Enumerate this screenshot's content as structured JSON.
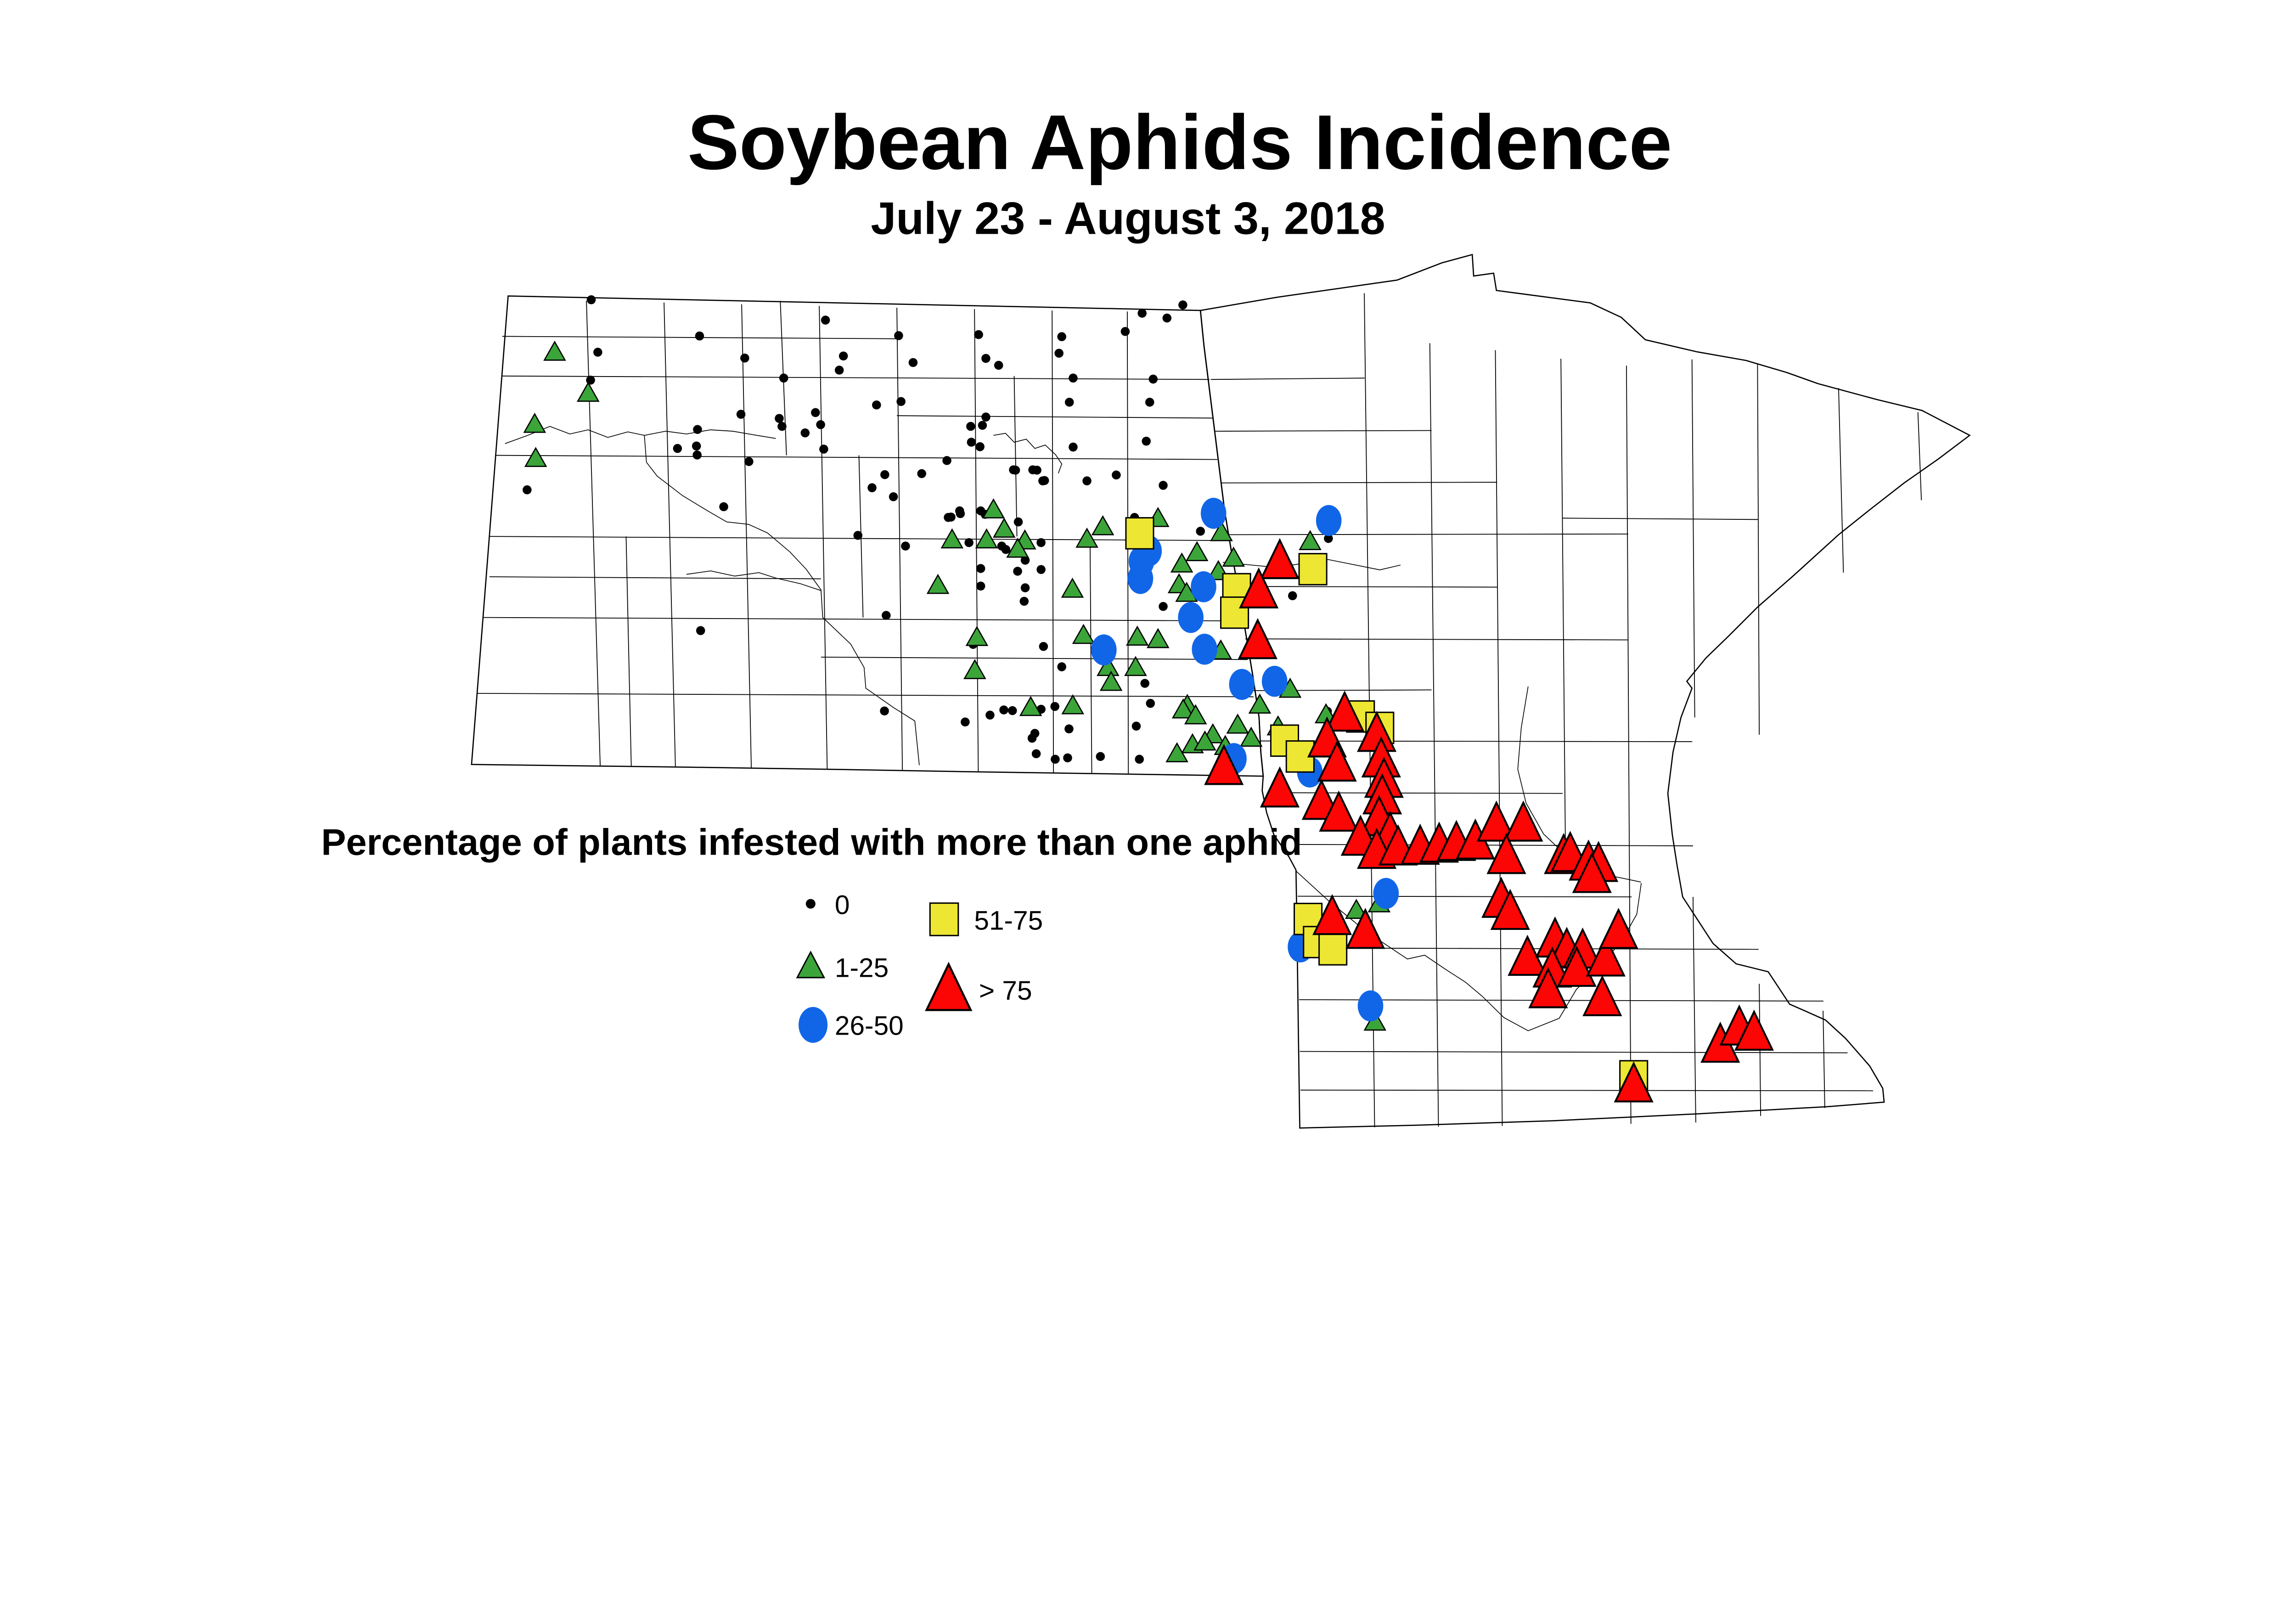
{
  "header": {
    "title": "Soybean Aphids Incidence",
    "subtitle": "July 23 - August 3, 2018"
  },
  "legend": {
    "title": "Percentage of plants infested with more than one aphid"
  },
  "chart_data": {
    "type": "scatter",
    "map_region": "North Dakota and Minnesota with county boundaries",
    "title": "Soybean Aphids Incidence",
    "subtitle": "July 23 - August 3, 2018",
    "legend_title": "Percentage of plants infested with more than one aphid",
    "classes": [
      {
        "label": "0",
        "symbol": "small-black-dot",
        "color": "#000000"
      },
      {
        "label": "1-25",
        "symbol": "small-green-triangle",
        "color": "#3CA53A"
      },
      {
        "label": "26-50",
        "symbol": "blue-circle",
        "color": "#1166E8"
      },
      {
        "label": "51-75",
        "symbol": "yellow-square",
        "color": "#EDE733"
      },
      {
        "label": "> 75",
        "symbol": "large-red-triangle",
        "color": "#FB0605"
      }
    ],
    "points": {
      "0": [
        [
          1714,
          869
        ],
        [
          1733,
          1021
        ],
        [
          1712,
          1102
        ],
        [
          1528,
          1420
        ],
        [
          2028,
          974
        ],
        [
          2159,
          1038
        ],
        [
          2272,
          1096
        ],
        [
          2148,
          1201
        ],
        [
          2022,
          1245
        ],
        [
          1964,
          1300
        ],
        [
          2019,
          1293
        ],
        [
          2021,
          1319
        ],
        [
          2171,
          1338
        ],
        [
          2098,
          1469
        ],
        [
          2031,
          1828
        ],
        [
          2259,
          1213
        ],
        [
          2267,
          1236
        ],
        [
          2569,
          1784
        ],
        [
          2393,
          928
        ],
        [
          2605,
          973
        ],
        [
          2647,
          1051
        ],
        [
          2445,
          1032
        ],
        [
          2433,
          1073
        ],
        [
          2837,
          970
        ],
        [
          2858,
          1039
        ],
        [
          2895,
          1059
        ],
        [
          3070,
          1024
        ],
        [
          2541,
          1174
        ],
        [
          2612,
          1164
        ],
        [
          2364,
          1196
        ],
        [
          2379,
          1231
        ],
        [
          2334,
          1255
        ],
        [
          2388,
          1302
        ],
        [
          2814,
          1236
        ],
        [
          2848,
          1233
        ],
        [
          2858,
          1209
        ],
        [
          2816,
          1282
        ],
        [
          2841,
          1295
        ],
        [
          2745,
          1335
        ],
        [
          2565,
          1376
        ],
        [
          2672,
          1373
        ],
        [
          2528,
          1414
        ],
        [
          2590,
          1440
        ],
        [
          2944,
          1363
        ],
        [
          3006,
          1363
        ],
        [
          3028,
          1393
        ],
        [
          2487,
          1552
        ],
        [
          2625,
          1583
        ],
        [
          2757,
          1499
        ],
        [
          2784,
          1489
        ],
        [
          2856,
          1491
        ],
        [
          3429,
          884
        ],
        [
          3311,
          908
        ],
        [
          3383,
          922
        ],
        [
          3262,
          961
        ],
        [
          3078,
          976
        ],
        [
          3111,
          1096
        ],
        [
          3343,
          1099
        ],
        [
          3100,
          1166
        ],
        [
          3333,
          1166
        ],
        [
          3111,
          1296
        ],
        [
          3323,
          1279
        ],
        [
          3372,
          1407
        ],
        [
          2938,
          1362
        ],
        [
          2994,
          1362
        ],
        [
          3023,
          1394
        ],
        [
          3151,
          1394
        ],
        [
          3236,
          1377
        ],
        [
          2749,
          1500
        ],
        [
          2782,
          1481
        ],
        [
          2843,
          1481
        ],
        [
          2952,
          1513
        ],
        [
          2809,
          1573
        ],
        [
          2904,
          1583
        ],
        [
          2916,
          1593
        ],
        [
          3018,
          1573
        ],
        [
          2972,
          1624
        ],
        [
          2843,
          1648
        ],
        [
          2950,
          1656
        ],
        [
          3018,
          1651
        ],
        [
          2843,
          1699
        ],
        [
          2972,
          1704
        ],
        [
          2969,
          1743
        ],
        [
          3289,
          1500
        ],
        [
          3372,
          1758
        ],
        [
          2821,
          1868
        ],
        [
          3025,
          1874
        ],
        [
          3078,
          1933
        ],
        [
          3319,
          1981
        ],
        [
          3335,
          2039
        ],
        [
          3058,
          2048
        ],
        [
          3018,
          2056
        ],
        [
          2910,
          2058
        ],
        [
          2935,
          2060
        ],
        [
          2798,
          2093
        ],
        [
          2870,
          2073
        ],
        [
          3480,
          1540
        ],
        [
          3851,
          1561
        ],
        [
          3747,
          1727
        ],
        [
          3848,
          2062
        ],
        [
          4120,
          2452
        ],
        [
          3000,
          2126
        ],
        [
          3099,
          2113
        ],
        [
          3294,
          2105
        ],
        [
          3004,
          2185
        ],
        [
          3059,
          2201
        ],
        [
          3095,
          2197
        ],
        [
          3190,
          2193
        ],
        [
          3303,
          2201
        ],
        [
          2564,
          2061
        ],
        [
          2992,
          2140
        ]
      ],
      "1-25": [
        [
          1608,
          1021
        ],
        [
          1705,
          1140
        ],
        [
          1550,
          1230
        ],
        [
          1553,
          1329
        ],
        [
          2880,
          1478
        ],
        [
          2911,
          1534
        ],
        [
          2760,
          1565
        ],
        [
          2860,
          1565
        ],
        [
          2971,
          1568
        ],
        [
          2950,
          1592
        ],
        [
          3151,
          1563
        ],
        [
          3197,
          1527
        ],
        [
          3357,
          1503
        ],
        [
          2719,
          1697
        ],
        [
          3109,
          1708
        ],
        [
          2832,
          1848
        ],
        [
          2826,
          1944
        ],
        [
          3141,
          1842
        ],
        [
          3297,
          1847
        ],
        [
          3357,
          1854
        ],
        [
          3212,
          1935
        ],
        [
          3221,
          1978
        ],
        [
          3292,
          1935
        ],
        [
          2988,
          2051
        ],
        [
          3110,
          2046
        ],
        [
          3442,
          2045
        ],
        [
          3426,
          1635
        ],
        [
          3418,
          1695
        ],
        [
          3440,
          1720
        ],
        [
          3470,
          1602
        ],
        [
          3532,
          1657
        ],
        [
          3541,
          1544
        ],
        [
          3576,
          1618
        ],
        [
          3539,
          1887
        ],
        [
          3798,
          1570
        ],
        [
          3430,
          2058
        ],
        [
          3466,
          2075
        ],
        [
          3516,
          2130
        ],
        [
          3588,
          2102
        ],
        [
          3652,
          2044
        ],
        [
          3705,
          2107
        ],
        [
          3627,
          2140
        ],
        [
          3457,
          2159
        ],
        [
          3493,
          2151
        ],
        [
          3412,
          2185
        ],
        [
          3552,
          2164
        ],
        [
          3740,
          1998
        ],
        [
          3844,
          2072
        ],
        [
          4273,
          2431
        ],
        [
          3932,
          2639
        ],
        [
          3998,
          2620
        ],
        [
          3986,
          2963
        ]
      ],
      "26-50": [
        [
          3518,
          1488
        ],
        [
          3852,
          1509
        ],
        [
          3331,
          1597
        ],
        [
          3309,
          1627
        ],
        [
          3306,
          1677
        ],
        [
          3489,
          1701
        ],
        [
          3452,
          1790
        ],
        [
          3492,
          1882
        ],
        [
          3200,
          1884
        ],
        [
          3600,
          1984
        ],
        [
          3695,
          1975
        ],
        [
          3577,
          2199
        ],
        [
          3797,
          2238
        ],
        [
          4018,
          2590
        ],
        [
          3770,
          2745
        ],
        [
          3973,
          2916
        ]
      ],
      "51-75": [
        [
          3304,
          1546
        ],
        [
          3806,
          1650
        ],
        [
          3585,
          1708
        ],
        [
          3579,
          1776
        ],
        [
          3724,
          2147
        ],
        [
          3769,
          2193
        ],
        [
          3944,
          2077
        ],
        [
          4000,
          2110
        ],
        [
          3792,
          2664
        ],
        [
          3819,
          2731
        ],
        [
          3864,
          2752
        ],
        [
          4736,
          3120
        ]
      ],
      "> 75": [
        [
          3710,
          1628
        ],
        [
          3649,
          1713
        ],
        [
          3646,
          1860
        ],
        [
          3548,
          2225
        ],
        [
          3710,
          2290
        ],
        [
          3898,
          2070
        ],
        [
          3847,
          2145
        ],
        [
          3991,
          2129
        ],
        [
          3876,
          2215
        ],
        [
          4004,
          2203
        ],
        [
          4012,
          2262
        ],
        [
          3831,
          2326
        ],
        [
          3881,
          2360
        ],
        [
          4007,
          2310
        ],
        [
          3998,
          2373
        ],
        [
          4030,
          2419
        ],
        [
          3944,
          2430
        ],
        [
          3991,
          2468
        ],
        [
          4053,
          2458
        ],
        [
          4117,
          2456
        ],
        [
          4172,
          2450
        ],
        [
          4222,
          2445
        ],
        [
          4277,
          2441
        ],
        [
          4338,
          2389
        ],
        [
          4416,
          2389
        ],
        [
          4367,
          2483
        ],
        [
          4533,
          2483
        ],
        [
          4552,
          2477
        ],
        [
          4605,
          2502
        ],
        [
          4634,
          2506
        ],
        [
          4615,
          2538
        ],
        [
          4352,
          2610
        ],
        [
          4378,
          2645
        ],
        [
          4428,
          2778
        ],
        [
          4508,
          2725
        ],
        [
          4542,
          2755
        ],
        [
          4588,
          2757
        ],
        [
          4500,
          2812
        ],
        [
          4571,
          2810
        ],
        [
          4655,
          2780
        ],
        [
          4692,
          2700
        ],
        [
          4645,
          2895
        ],
        [
          4488,
          2872
        ],
        [
          3862,
          2660
        ],
        [
          3958,
          2700
        ],
        [
          4736,
          3145
        ],
        [
          4987,
          3030
        ],
        [
          5042,
          2980
        ],
        [
          5085,
          2995
        ]
      ]
    }
  }
}
